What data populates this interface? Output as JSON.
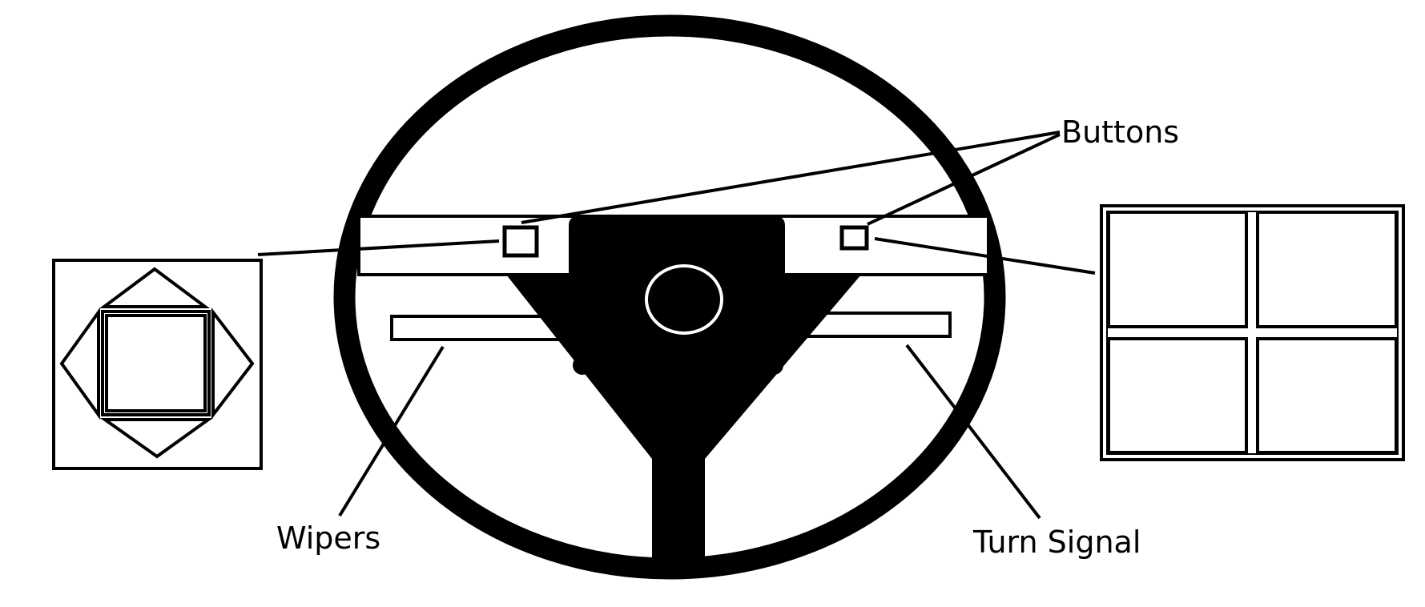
{
  "labels": {
    "buttons": "Buttons",
    "wipers": "Wipers",
    "turn_signal": "Turn Signal"
  },
  "colors": {
    "ink": "#000000",
    "background": "#ffffff"
  }
}
